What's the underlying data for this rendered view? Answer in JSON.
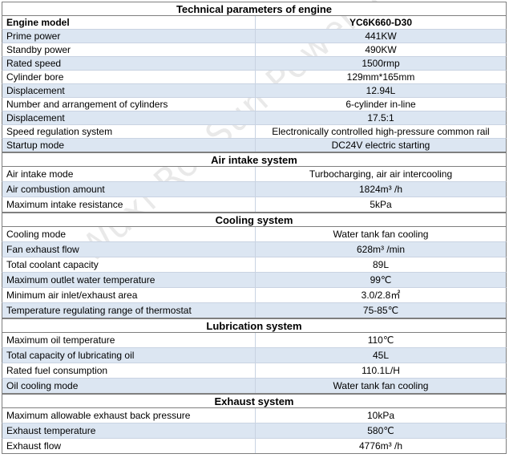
{
  "watermark": "Wuxi RonSun Power Technology Co., Ltd.",
  "sections": [
    {
      "title": "Technical parameters of engine",
      "rows": [
        {
          "k": "Engine model",
          "v": "YC6K660-D30",
          "head": true,
          "shade": false
        },
        {
          "k": "Prime power",
          "v": "441KW",
          "shade": true
        },
        {
          "k": "Standby power",
          "v": "490KW",
          "shade": false
        },
        {
          "k": "Rated speed",
          "v": "1500rmp",
          "shade": true
        },
        {
          "k": "Cylinder bore",
          "v": "129mm*165mm",
          "shade": false
        },
        {
          "k": "Displacement",
          "v": "12.94L",
          "shade": true
        },
        {
          "k": "Number and arrangement of cylinders",
          "v": "6-cylinder in-line",
          "shade": false
        },
        {
          "k": "Displacement",
          "v": "17.5:1",
          "shade": true
        },
        {
          "k": "Speed regulation system",
          "v": "Electronically controlled high-pressure common rail",
          "shade": false
        },
        {
          "k": "Startup mode",
          "v": "DC24V electric starting",
          "shade": true
        }
      ]
    },
    {
      "title": "Air intake system",
      "rows": [
        {
          "k": "Air intake mode",
          "v": "Turbocharging, air air intercooling",
          "shade": false,
          "tall": true
        },
        {
          "k": "Air combustion amount",
          "v": "1824m³ /h",
          "shade": true,
          "tall": true
        },
        {
          "k": "Maximum intake resistance",
          "v": "5kPa",
          "shade": false,
          "tall": true
        }
      ]
    },
    {
      "title": "Cooling system",
      "rows": [
        {
          "k": "Cooling mode",
          "v": "Water tank fan cooling",
          "shade": false,
          "tall": true
        },
        {
          "k": "Fan exhaust flow",
          "v": "628m³   /min",
          "shade": true,
          "tall": true
        },
        {
          "k": "Total coolant capacity",
          "v": "89L",
          "shade": false,
          "tall": true
        },
        {
          "k": "Maximum outlet water temperature",
          "v": "99℃",
          "shade": true,
          "tall": true
        },
        {
          "k": "Minimum air inlet/exhaust area",
          "v": "3.0/2.8㎡",
          "shade": false,
          "tall": true
        },
        {
          "k": "Temperature regulating range of thermostat",
          "v": "75-85℃",
          "shade": true,
          "tall": true
        }
      ]
    },
    {
      "title": "Lubrication system",
      "rows": [
        {
          "k": "Maximum oil temperature",
          "v": "110℃",
          "shade": false,
          "tall": true
        },
        {
          "k": "Total capacity of lubricating oil",
          "v": "45L",
          "shade": true,
          "tall": true
        },
        {
          "k": "Rated fuel consumption",
          "v": "110.1L/H",
          "shade": false,
          "tall": true
        },
        {
          "k": "Oil cooling mode",
          "v": "Water tank fan cooling",
          "shade": true,
          "tall": true
        }
      ]
    },
    {
      "title": "Exhaust system",
      "rows": [
        {
          "k": "Maximum allowable exhaust back pressure",
          "v": "10kPa",
          "shade": false,
          "tall": true
        },
        {
          "k": "Exhaust temperature",
          "v": "580℃",
          "shade": true,
          "tall": true
        },
        {
          "k": "Exhaust flow",
          "v": "4776m³ /h",
          "shade": false,
          "tall": true
        }
      ]
    }
  ]
}
